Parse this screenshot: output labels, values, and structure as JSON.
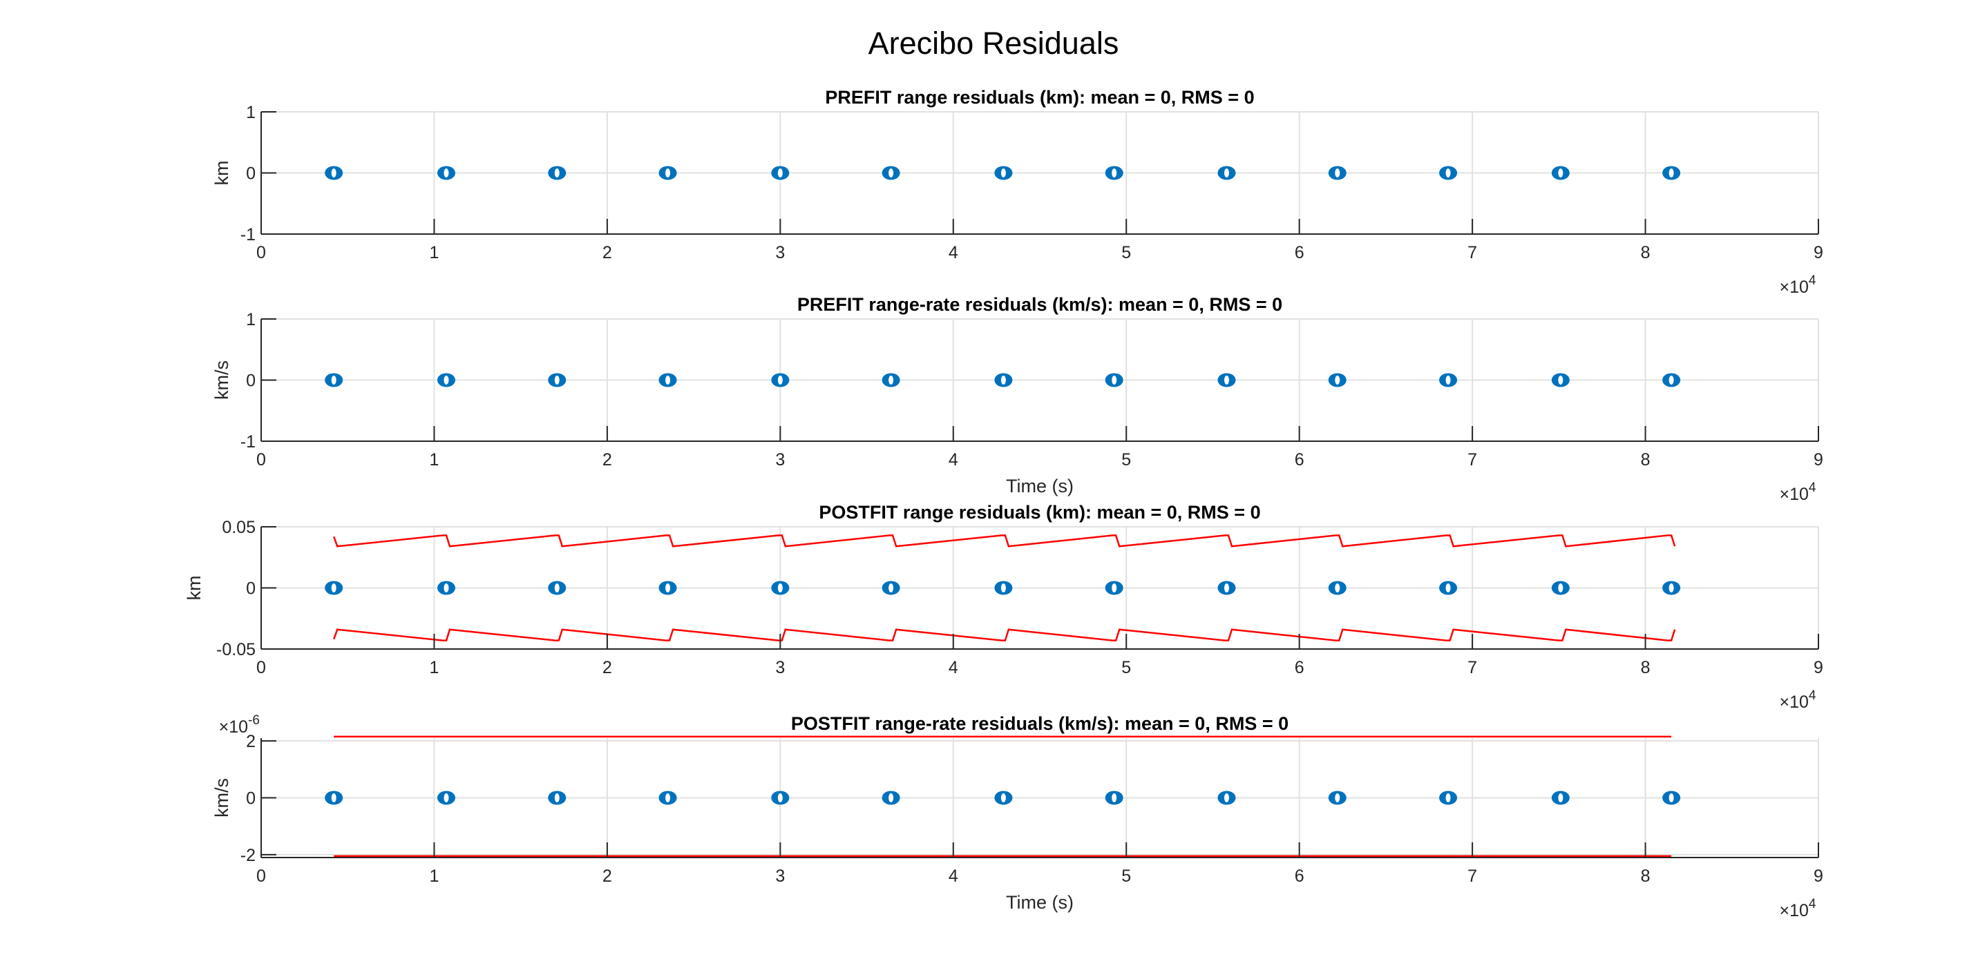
{
  "figure": {
    "title": "Arecibo Residuals",
    "x_multiplier": "×10",
    "x_multiplier_exp": "4"
  },
  "colors": {
    "points": "#0072BD",
    "bounds": "#FF0000",
    "grid": "#E1E1E1",
    "axis": "#262626"
  },
  "chart_data": [
    {
      "type": "scatter",
      "title": "PREFIT range residuals (km): mean = 0, RMS = 0",
      "xlabel": "",
      "ylabel": "km",
      "xlim": [
        0,
        90000
      ],
      "ylim": [
        -1,
        1
      ],
      "xticks": [
        0,
        1,
        2,
        3,
        4,
        5,
        6,
        7,
        8,
        9
      ],
      "xtick_scale": 10000,
      "yticks": [
        -1,
        0,
        1
      ],
      "ytick_labels": [
        "-1",
        "0",
        "1"
      ],
      "y_exponent": "",
      "grid": true,
      "series": [
        {
          "kind": "points",
          "x": [
            4200,
            10700,
            17100,
            23500,
            30000,
            36400,
            42900,
            49300,
            55800,
            62200,
            68600,
            75100,
            81500
          ],
          "y": [
            0,
            0,
            0,
            0,
            0,
            0,
            0,
            0,
            0,
            0,
            0,
            0,
            0
          ]
        }
      ]
    },
    {
      "type": "scatter",
      "title": "PREFIT range-rate residuals (km/s): mean = 0, RMS = 0",
      "xlabel": "Time (s)",
      "ylabel": "km/s",
      "xlim": [
        0,
        90000
      ],
      "ylim": [
        -1,
        1
      ],
      "xticks": [
        0,
        1,
        2,
        3,
        4,
        5,
        6,
        7,
        8,
        9
      ],
      "xtick_scale": 10000,
      "yticks": [
        -1,
        0,
        1
      ],
      "ytick_labels": [
        "-1",
        "0",
        "1"
      ],
      "y_exponent": "",
      "grid": true,
      "series": [
        {
          "kind": "points",
          "x": [
            4200,
            10700,
            17100,
            23500,
            30000,
            36400,
            42900,
            49300,
            55800,
            62200,
            68600,
            75100,
            81500
          ],
          "y": [
            0,
            0,
            0,
            0,
            0,
            0,
            0,
            0,
            0,
            0,
            0,
            0,
            0
          ]
        }
      ]
    },
    {
      "type": "scatter",
      "title": "POSTFIT range residuals (km): mean = 0, RMS = 0",
      "xlabel": "",
      "ylabel": "km",
      "xlim": [
        0,
        90000
      ],
      "ylim": [
        -0.05,
        0.05
      ],
      "xticks": [
        0,
        1,
        2,
        3,
        4,
        5,
        6,
        7,
        8,
        9
      ],
      "xtick_scale": 10000,
      "yticks": [
        -0.05,
        0,
        0.05
      ],
      "ytick_labels": [
        "-0.05",
        "0",
        "0.05"
      ],
      "y_exponent": "",
      "grid": true,
      "series": [
        {
          "kind": "points",
          "x": [
            4200,
            10700,
            17100,
            23500,
            30000,
            36400,
            42900,
            49300,
            55800,
            62200,
            68600,
            75100,
            81500
          ],
          "y": [
            0,
            0,
            0,
            0,
            0,
            0,
            0,
            0,
            0,
            0,
            0,
            0,
            0
          ]
        },
        {
          "kind": "line",
          "x": [
            4200,
            4400,
            10500,
            10700,
            10900,
            17000,
            17200,
            17400,
            23400,
            23600,
            23800,
            29900,
            30100,
            30300,
            36300,
            36500,
            36700,
            42800,
            43000,
            43200,
            49200,
            49400,
            49600,
            55700,
            55900,
            56100,
            62100,
            62300,
            62500,
            68500,
            68700,
            68900,
            75000,
            75200,
            75400,
            81300,
            81500,
            81700
          ],
          "y": [
            0.042,
            0.034,
            0.043,
            0.043,
            0.034,
            0.043,
            0.043,
            0.034,
            0.043,
            0.043,
            0.034,
            0.043,
            0.043,
            0.034,
            0.043,
            0.043,
            0.034,
            0.043,
            0.043,
            0.034,
            0.043,
            0.043,
            0.034,
            0.043,
            0.043,
            0.034,
            0.043,
            0.043,
            0.034,
            0.043,
            0.043,
            0.034,
            0.043,
            0.043,
            0.034,
            0.043,
            0.043,
            0.034
          ]
        },
        {
          "kind": "line",
          "x": [
            4200,
            4400,
            10500,
            10700,
            10900,
            17000,
            17200,
            17400,
            23400,
            23600,
            23800,
            29900,
            30100,
            30300,
            36300,
            36500,
            36700,
            42800,
            43000,
            43200,
            49200,
            49400,
            49600,
            55700,
            55900,
            56100,
            62100,
            62300,
            62500,
            68500,
            68700,
            68900,
            75000,
            75200,
            75400,
            81300,
            81500,
            81700
          ],
          "y": [
            -0.042,
            -0.034,
            -0.043,
            -0.043,
            -0.034,
            -0.043,
            -0.043,
            -0.034,
            -0.043,
            -0.043,
            -0.034,
            -0.043,
            -0.043,
            -0.034,
            -0.043,
            -0.043,
            -0.034,
            -0.043,
            -0.043,
            -0.034,
            -0.043,
            -0.043,
            -0.034,
            -0.043,
            -0.043,
            -0.034,
            -0.043,
            -0.043,
            -0.034,
            -0.043,
            -0.043,
            -0.034,
            -0.043,
            -0.043,
            -0.034,
            -0.043,
            -0.043,
            -0.034
          ]
        }
      ]
    },
    {
      "type": "scatter",
      "title": "POSTFIT range-rate residuals (km/s): mean = 0, RMS = 0",
      "xlabel": "Time (s)",
      "ylabel": "km/s",
      "xlim": [
        0,
        90000
      ],
      "ylim": [
        -2.1e-06,
        2.1e-06
      ],
      "xticks": [
        0,
        1,
        2,
        3,
        4,
        5,
        6,
        7,
        8,
        9
      ],
      "xtick_scale": 10000,
      "yticks": [
        -2e-06,
        0,
        2e-06
      ],
      "ytick_labels": [
        "-2",
        "0",
        "2"
      ],
      "y_exponent": "-6",
      "grid": true,
      "series": [
        {
          "kind": "points",
          "x": [
            4200,
            10700,
            17100,
            23500,
            30000,
            36400,
            42900,
            49300,
            55800,
            62200,
            68600,
            75100,
            81500
          ],
          "y": [
            0,
            0,
            0,
            0,
            0,
            0,
            0,
            0,
            0,
            0,
            0,
            0,
            0
          ]
        },
        {
          "kind": "line",
          "x": [
            4200,
            81500
          ],
          "y": [
            2.15e-06,
            2.15e-06
          ]
        },
        {
          "kind": "line",
          "x": [
            4200,
            81500
          ],
          "y": [
            -2.05e-06,
            -2.05e-06
          ]
        }
      ]
    }
  ]
}
